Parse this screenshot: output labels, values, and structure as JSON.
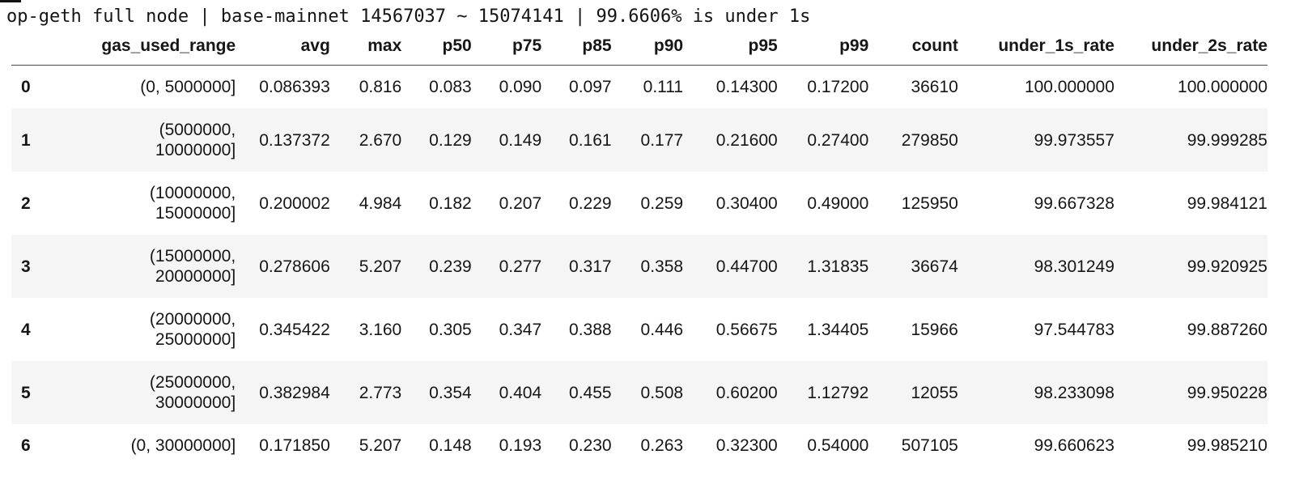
{
  "title": "op-geth full node | base-mainnet 14567037 ~ 15074141 | 99.6606% is under 1s",
  "colors": {
    "background": "#ffffff",
    "text": "#161616",
    "row_stripe": "#f5f5f5",
    "header_border": "#4a4a4a"
  },
  "table": {
    "index_header": "",
    "columns": [
      "gas_used_range",
      "avg",
      "max",
      "p50",
      "p75",
      "p85",
      "p90",
      "p95",
      "p99",
      "count",
      "under_1s_rate",
      "under_2s_rate"
    ],
    "rows": [
      {
        "index": "0",
        "cells": [
          "(0, 5000000]",
          "0.086393",
          "0.816",
          "0.083",
          "0.090",
          "0.097",
          "0.111",
          "0.14300",
          "0.17200",
          "36610",
          "100.000000",
          "100.000000"
        ]
      },
      {
        "index": "1",
        "cells": [
          "(5000000, 10000000]",
          "0.137372",
          "2.670",
          "0.129",
          "0.149",
          "0.161",
          "0.177",
          "0.21600",
          "0.27400",
          "279850",
          "99.973557",
          "99.999285"
        ]
      },
      {
        "index": "2",
        "cells": [
          "(10000000, 15000000]",
          "0.200002",
          "4.984",
          "0.182",
          "0.207",
          "0.229",
          "0.259",
          "0.30400",
          "0.49000",
          "125950",
          "99.667328",
          "99.984121"
        ]
      },
      {
        "index": "3",
        "cells": [
          "(15000000, 20000000]",
          "0.278606",
          "5.207",
          "0.239",
          "0.277",
          "0.317",
          "0.358",
          "0.44700",
          "1.31835",
          "36674",
          "98.301249",
          "99.920925"
        ]
      },
      {
        "index": "4",
        "cells": [
          "(20000000, 25000000]",
          "0.345422",
          "3.160",
          "0.305",
          "0.347",
          "0.388",
          "0.446",
          "0.56675",
          "1.34405",
          "15966",
          "97.544783",
          "99.887260"
        ]
      },
      {
        "index": "5",
        "cells": [
          "(25000000, 30000000]",
          "0.382984",
          "2.773",
          "0.354",
          "0.404",
          "0.455",
          "0.508",
          "0.60200",
          "1.12792",
          "12055",
          "98.233098",
          "99.950228"
        ]
      },
      {
        "index": "6",
        "cells": [
          "(0, 30000000]",
          "0.171850",
          "5.207",
          "0.148",
          "0.193",
          "0.230",
          "0.263",
          "0.32300",
          "0.54000",
          "507105",
          "99.660623",
          "99.985210"
        ]
      }
    ]
  }
}
